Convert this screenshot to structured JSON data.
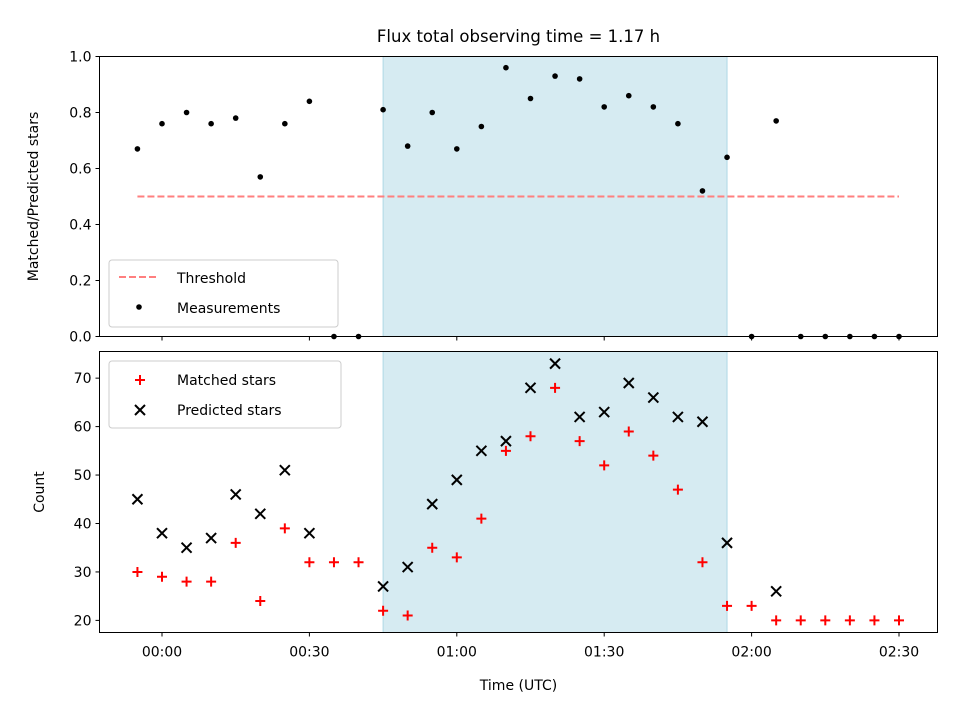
{
  "chart_data": [
    {
      "type": "scatter",
      "title": "Flux total observing time = 1.17 h",
      "ylabel": "Matched/Predicted stars",
      "xlabel": "",
      "ylim": [
        0,
        1.0
      ],
      "yticks": [
        "0.0",
        "0.2",
        "0.4",
        "0.6",
        "0.8",
        "1.0"
      ],
      "x_unit": "minutes relative to 00:00 UTC",
      "highlight_span": [
        "00:45",
        "01:55"
      ],
      "threshold": {
        "name": "Threshold",
        "value": 0.5,
        "x_range": [
          "-00:05",
          "02:30"
        ],
        "color": "#ff7f7f",
        "style": "dashed"
      },
      "series": [
        {
          "name": "Measurements",
          "color": "#000000",
          "marker": "dot",
          "x": [
            "-00:05",
            "00:00",
            "00:05",
            "00:10",
            "00:15",
            "00:20",
            "00:25",
            "00:30",
            "00:35",
            "00:40",
            "00:45",
            "00:50",
            "00:55",
            "01:00",
            "01:05",
            "01:10",
            "01:15",
            "01:20",
            "01:25",
            "01:30",
            "01:35",
            "01:40",
            "01:45",
            "01:50",
            "01:55",
            "02:00",
            "02:05",
            "02:10",
            "02:15",
            "02:20",
            "02:25",
            "02:30"
          ],
          "values": [
            0.67,
            0.76,
            0.8,
            0.76,
            0.78,
            0.57,
            0.76,
            0.84,
            0.0,
            0.0,
            0.81,
            0.68,
            0.8,
            0.67,
            0.75,
            0.96,
            0.85,
            0.93,
            0.92,
            0.82,
            0.86,
            0.82,
            0.76,
            0.52,
            0.64,
            0.0,
            0.77,
            0.0,
            0.0,
            0.0,
            0.0,
            0.0
          ]
        }
      ],
      "legend": {
        "placement": "lower-left",
        "entries": [
          "Threshold",
          "Measurements"
        ]
      }
    },
    {
      "type": "scatter",
      "title": "",
      "xlabel": "Time (UTC)",
      "ylabel": "Count",
      "ylim": [
        17.5,
        75.5
      ],
      "yticks": [
        "20",
        "30",
        "40",
        "50",
        "60",
        "70"
      ],
      "xticks": [
        "00:00",
        "00:30",
        "01:00",
        "01:30",
        "02:00",
        "02:30"
      ],
      "highlight_span": [
        "00:45",
        "01:55"
      ],
      "series": [
        {
          "name": "Matched stars",
          "color": "#ff0000",
          "marker": "plus",
          "x": [
            "-00:05",
            "00:00",
            "00:05",
            "00:10",
            "00:15",
            "00:20",
            "00:25",
            "00:30",
            "00:35",
            "00:40",
            "00:45",
            "00:50",
            "00:55",
            "01:00",
            "01:05",
            "01:10",
            "01:15",
            "01:20",
            "01:25",
            "01:30",
            "01:35",
            "01:40",
            "01:45",
            "01:50",
            "01:55",
            "02:00",
            "02:05",
            "02:10",
            "02:15",
            "02:20",
            "02:25",
            "02:30"
          ],
          "values": [
            30,
            29,
            28,
            28,
            36,
            24,
            39,
            32,
            32,
            32,
            22,
            21,
            35,
            33,
            41,
            55,
            58,
            68,
            57,
            52,
            59,
            54,
            47,
            32,
            23,
            23,
            20,
            20,
            20,
            20,
            20,
            20
          ]
        },
        {
          "name": "Predicted stars",
          "color": "#000000",
          "marker": "x",
          "x": [
            "-00:05",
            "00:00",
            "00:05",
            "00:10",
            "00:15",
            "00:20",
            "00:25",
            "00:30",
            "00:45",
            "00:50",
            "00:55",
            "01:00",
            "01:05",
            "01:10",
            "01:15",
            "01:20",
            "01:25",
            "01:30",
            "01:35",
            "01:40",
            "01:45",
            "01:50",
            "01:55",
            "02:05"
          ],
          "values": [
            45,
            38,
            35,
            37,
            46,
            42,
            51,
            38,
            27,
            31,
            44,
            49,
            55,
            57,
            68,
            73,
            62,
            63,
            69,
            66,
            62,
            61,
            36,
            26
          ]
        }
      ],
      "legend": {
        "placement": "upper-left",
        "entries": [
          "Matched stars",
          "Predicted stars"
        ]
      }
    }
  ],
  "colors": {
    "span": "#add8e6",
    "threshold": "#ff7f7f",
    "matched": "#ff0000",
    "predicted": "#000000"
  }
}
